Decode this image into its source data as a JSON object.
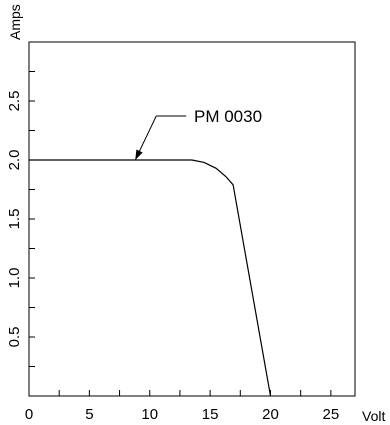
{
  "chart_data": {
    "type": "line",
    "xlabel": "Volt",
    "ylabel": "Amps",
    "xlim": [
      0,
      27
    ],
    "ylim": [
      0,
      3.0
    ],
    "x_ticks": [
      0,
      5,
      10,
      15,
      20,
      25
    ],
    "x_tick_labels": [
      "0",
      "5",
      "10",
      "15",
      "20",
      "25"
    ],
    "x_minor_step": 2.5,
    "y_ticks": [
      0.5,
      1.0,
      1.5,
      2.0,
      2.5
    ],
    "y_tick_labels": [
      "0.5",
      "1.0",
      "1.5",
      "2.0",
      "2.5"
    ],
    "y_minor_step": 0.25,
    "grid": false,
    "series": [
      {
        "x": [
          0,
          13.5,
          14.5,
          15.5,
          16.3,
          16.9,
          20.0
        ],
        "y": [
          2.0,
          2.0,
          1.98,
          1.93,
          1.86,
          1.79,
          0.0
        ]
      }
    ],
    "annotations": [
      {
        "text": "PM 0030",
        "x": 8.8,
        "y": 2.0
      }
    ],
    "colors": {
      "line": "#000000",
      "axes": "#000000"
    }
  }
}
